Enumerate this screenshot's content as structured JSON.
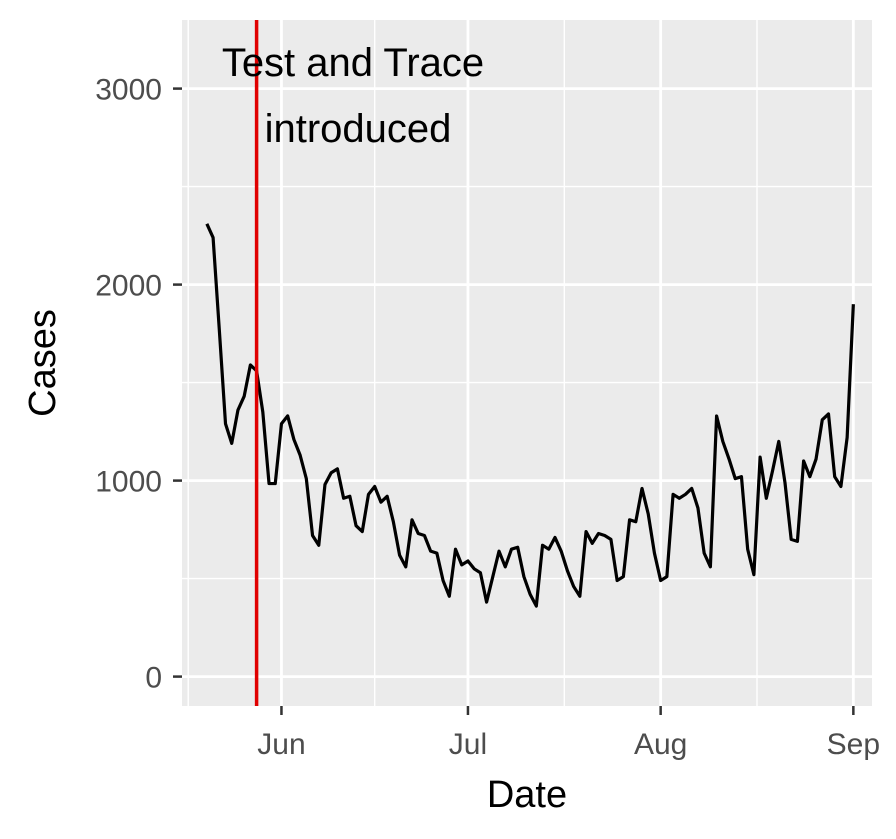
{
  "chart_data": {
    "type": "line",
    "xlabel": "Date",
    "ylabel": "Cases",
    "x_range": [
      "2020-05-16",
      "2020-09-04"
    ],
    "ylim": [
      -150,
      3350
    ],
    "grid": true,
    "legend": "none",
    "x_ticks": [
      {
        "date": "2020-06-01",
        "label": "Jun"
      },
      {
        "date": "2020-07-01",
        "label": "Jul"
      },
      {
        "date": "2020-08-01",
        "label": "Aug"
      },
      {
        "date": "2020-09-01",
        "label": "Sep"
      }
    ],
    "y_ticks": [
      0,
      1000,
      2000,
      3000
    ],
    "annotation": {
      "lines": [
        "Test and Trace",
        "introduced"
      ],
      "date": "2020-05-28",
      "color": "#e00000"
    },
    "line_color": "#000000",
    "panel_color": "#ebebeb",
    "series": [
      {
        "dates": [
          "2020-05-20",
          "2020-05-21",
          "2020-05-22",
          "2020-05-23",
          "2020-05-24",
          "2020-05-25",
          "2020-05-26",
          "2020-05-27",
          "2020-05-28",
          "2020-05-29",
          "2020-05-30",
          "2020-05-31",
          "2020-06-01",
          "2020-06-02",
          "2020-06-03",
          "2020-06-04",
          "2020-06-05",
          "2020-06-06",
          "2020-06-07",
          "2020-06-08",
          "2020-06-09",
          "2020-06-10",
          "2020-06-11",
          "2020-06-12",
          "2020-06-13",
          "2020-06-14",
          "2020-06-15",
          "2020-06-16",
          "2020-06-17",
          "2020-06-18",
          "2020-06-19",
          "2020-06-20",
          "2020-06-21",
          "2020-06-22",
          "2020-06-23",
          "2020-06-24",
          "2020-06-25",
          "2020-06-26",
          "2020-06-27",
          "2020-06-28",
          "2020-06-29",
          "2020-06-30",
          "2020-07-01",
          "2020-07-02",
          "2020-07-03",
          "2020-07-04",
          "2020-07-05",
          "2020-07-06",
          "2020-07-07",
          "2020-07-08",
          "2020-07-09",
          "2020-07-10",
          "2020-07-11",
          "2020-07-12",
          "2020-07-13",
          "2020-07-14",
          "2020-07-15",
          "2020-07-16",
          "2020-07-17",
          "2020-07-18",
          "2020-07-19",
          "2020-07-20",
          "2020-07-21",
          "2020-07-22",
          "2020-07-23",
          "2020-07-24",
          "2020-07-25",
          "2020-07-26",
          "2020-07-27",
          "2020-07-28",
          "2020-07-29",
          "2020-07-30",
          "2020-07-31",
          "2020-08-01",
          "2020-08-02",
          "2020-08-03",
          "2020-08-04",
          "2020-08-05",
          "2020-08-06",
          "2020-08-07",
          "2020-08-08",
          "2020-08-09",
          "2020-08-10",
          "2020-08-11",
          "2020-08-12",
          "2020-08-13",
          "2020-08-14",
          "2020-08-15",
          "2020-08-16",
          "2020-08-17",
          "2020-08-18",
          "2020-08-19",
          "2020-08-20",
          "2020-08-21",
          "2020-08-22",
          "2020-08-23",
          "2020-08-24",
          "2020-08-25",
          "2020-08-26",
          "2020-08-27",
          "2020-08-28",
          "2020-08-29",
          "2020-08-30",
          "2020-08-31",
          "2020-09-01"
        ],
        "values": [
          2310,
          2240,
          1770,
          1290,
          1190,
          1360,
          1430,
          1590,
          1560,
          1350,
          985,
          985,
          1290,
          1330,
          1210,
          1130,
          1010,
          720,
          670,
          980,
          1040,
          1060,
          910,
          920,
          770,
          740,
          930,
          970,
          890,
          920,
          790,
          620,
          560,
          800,
          730,
          720,
          640,
          630,
          490,
          410,
          650,
          570,
          590,
          550,
          530,
          380,
          510,
          640,
          560,
          650,
          660,
          510,
          420,
          360,
          670,
          650,
          710,
          640,
          540,
          460,
          410,
          740,
          680,
          730,
          720,
          700,
          490,
          510,
          800,
          790,
          960,
          830,
          630,
          490,
          510,
          930,
          910,
          930,
          960,
          860,
          630,
          560,
          1330,
          1200,
          1110,
          1010,
          1020,
          650,
          520,
          1120,
          910,
          1050,
          1200,
          990,
          700,
          690,
          1100,
          1020,
          1110,
          1310,
          1340,
          1020,
          970,
          1220,
          1900
        ]
      }
    ]
  }
}
